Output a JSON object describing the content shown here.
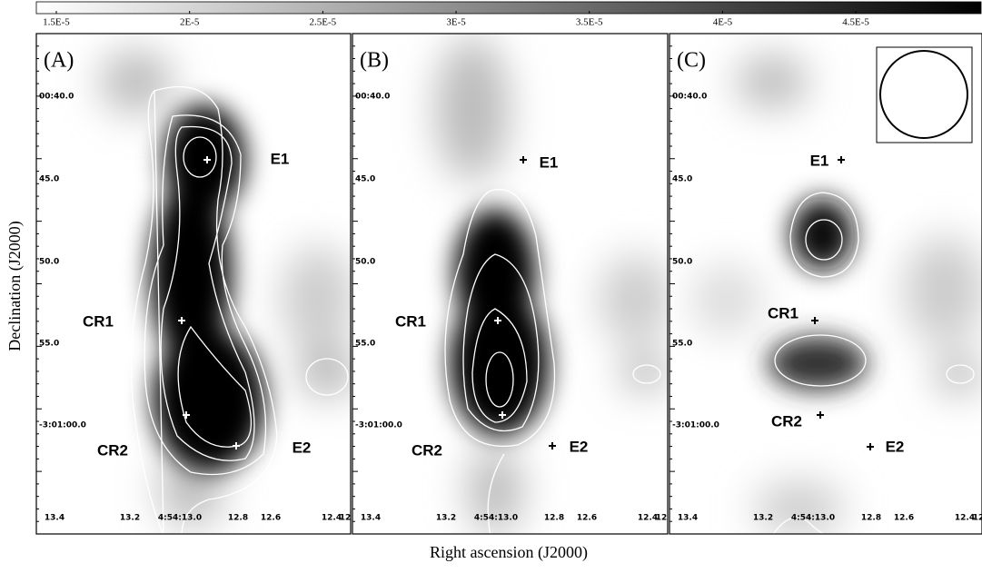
{
  "chart_data": {
    "type": "image",
    "x_label": "Right ascension (J2000)",
    "y_label": "Declination (J2000)",
    "colorbar": {
      "lim": [
        1.425e-05,
        4.97e-05
      ],
      "ticks": [
        {
          "value": 1.5e-05,
          "label": "1.5E-5"
        },
        {
          "value": 2e-05,
          "label": "2E-5"
        },
        {
          "value": 2.5e-05,
          "label": "2.5E-5"
        },
        {
          "value": 3e-05,
          "label": "3E-5"
        },
        {
          "value": 3.5e-05,
          "label": "3.5E-5"
        },
        {
          "value": 4e-05,
          "label": "4E-5"
        },
        {
          "value": 4.5e-05,
          "label": "4.5E-5"
        }
      ]
    },
    "yticklabels": [
      "00:40.0",
      "45.0",
      "50.0",
      "55.0",
      "-3:01:00.0"
    ],
    "xticklabels": [
      "13.4",
      "13.2",
      "4:54:13.0",
      "12.8",
      "12.6",
      "12.4",
      "12"
    ],
    "panels": [
      {
        "label": "(A)",
        "sources": [
          "E1",
          "CR1",
          "CR2",
          "E2"
        ]
      },
      {
        "label": "(B)",
        "sources": [
          "E1",
          "CR1",
          "CR2",
          "E2"
        ]
      },
      {
        "label": "(C)",
        "sources": [
          "E1",
          "CR1",
          "CR2",
          "E2"
        ]
      }
    ]
  }
}
